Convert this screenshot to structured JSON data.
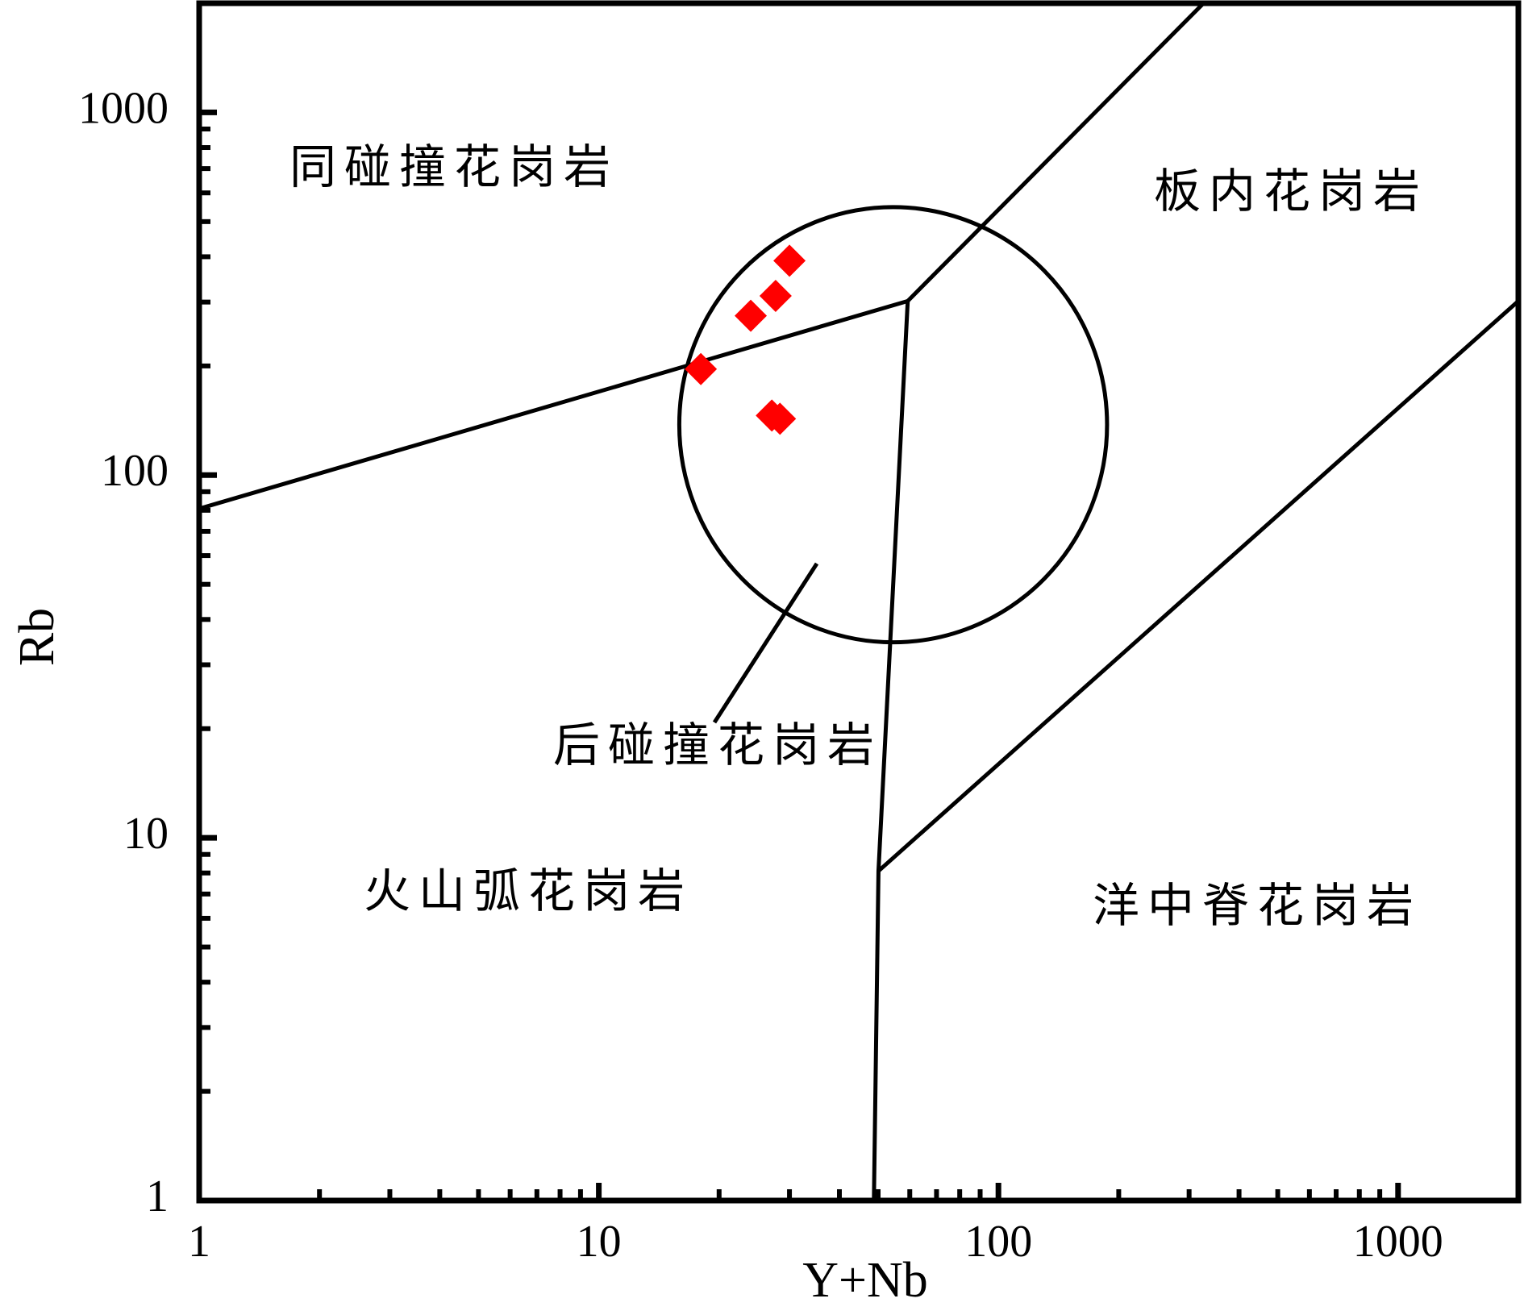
{
  "chart_data": {
    "type": "scatter",
    "x_label": "Y+Nb",
    "y_label": "Rb",
    "xlim": [
      1,
      2000
    ],
    "ylim": [
      1,
      2000
    ],
    "log_x": true,
    "log_y": true,
    "xticks": [
      1,
      10,
      100,
      1000
    ],
    "yticks": [
      1,
      10,
      100,
      1000
    ],
    "xticks_minor": [
      2,
      3,
      4,
      5,
      6,
      7,
      8,
      9,
      20,
      30,
      40,
      50,
      60,
      70,
      80,
      90,
      200,
      300,
      400,
      500,
      600,
      700,
      800,
      900
    ],
    "yticks_minor": [
      2,
      3,
      4,
      5,
      6,
      7,
      8,
      9,
      20,
      30,
      40,
      50,
      60,
      70,
      80,
      90,
      200,
      300,
      400,
      500,
      600,
      700,
      800,
      900
    ],
    "series": [
      {
        "color": "#ff0000",
        "x": [
          18.0,
          24.0,
          27.7,
          30.0,
          27.1,
          28.4
        ],
        "values": [
          196,
          275,
          312,
          390,
          146,
          143
        ]
      }
    ],
    "boundaries": [
      {
        "x": [
          1,
          59.3
        ],
        "y": [
          80.8,
          302
        ]
      },
      {
        "x": [
          59.3,
          326
        ],
        "y": [
          302,
          2000
        ]
      },
      {
        "x": [
          59.3,
          50.1,
          48.8
        ],
        "y": [
          302,
          8.1,
          1
        ]
      },
      {
        "x": [
          50.1,
          2000
        ],
        "y": [
          8.1,
          302
        ]
      }
    ],
    "circle": {
      "x": [
        15.9,
        187
      ],
      "y": [
        34.6,
        548
      ]
    },
    "regions": [
      "同碰撞花岗岩",
      "板内花岗岩",
      "后碰撞花岗岩",
      "火山弧花岗岩",
      "洋中脊花岗岩"
    ]
  }
}
